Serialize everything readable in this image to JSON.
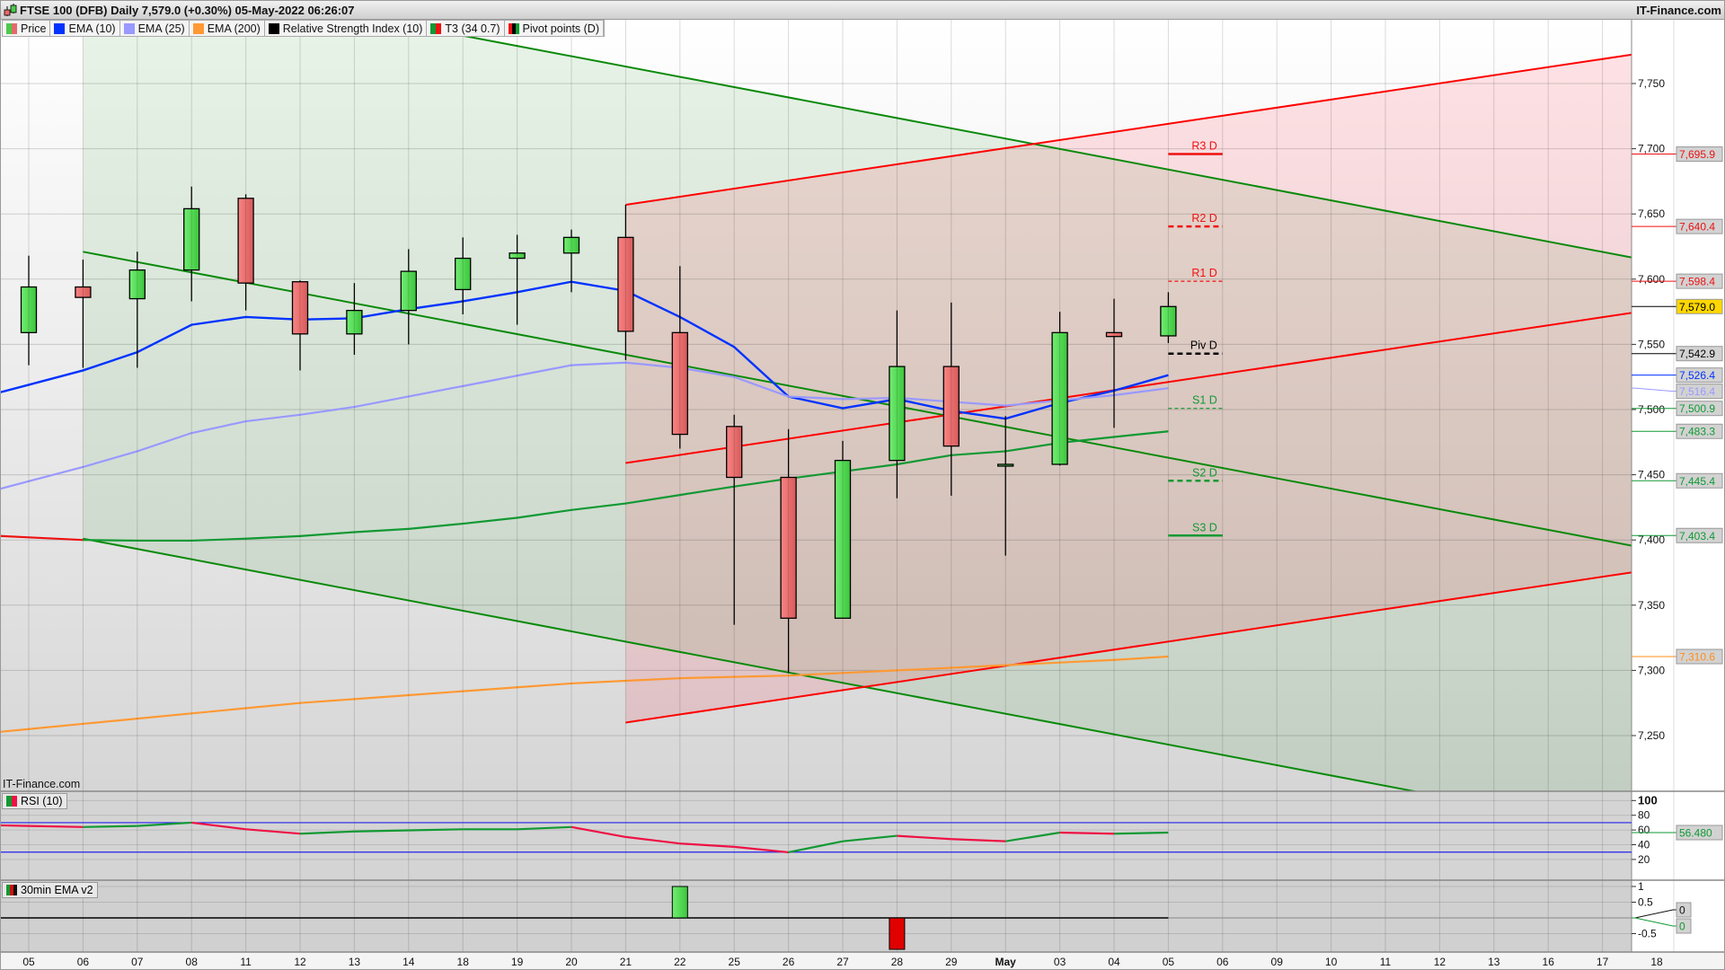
{
  "header": {
    "title": "FTSE 100 (DFB) Daily 7,579.0 (+0.30%) 05-May-2022 06:26:07",
    "brand": "IT-Finance.com",
    "logo_icon": "candlestick-icon"
  },
  "legend": [
    {
      "label": "Price",
      "colors": [
        "#4cc94c",
        "#e46a6a"
      ]
    },
    {
      "label": "EMA (10)",
      "colors": [
        "#0033ff"
      ]
    },
    {
      "label": "EMA (25)",
      "colors": [
        "#9999ff"
      ]
    },
    {
      "label": "EMA (200)",
      "colors": [
        "#ff9933"
      ]
    },
    {
      "label": "Relative Strength Index (10)",
      "colors": [
        "#000000"
      ]
    },
    {
      "label": "T3 (34 0.7)",
      "colors": [
        "#119933",
        "#ee1111"
      ]
    },
    {
      "label": "Pivot points (D)",
      "colors": [
        "#ee1111",
        "#000000",
        "#119933"
      ]
    }
  ],
  "watermark": "IT-Finance.com",
  "panels": {
    "rsi_label": "RSI (10)",
    "ema30_label": "30min EMA v2"
  },
  "colors": {
    "up": "#4cd44c",
    "down": "#e86a6a",
    "ema10": "#0033ff",
    "ema25": "#9999ff",
    "ema200": "#ff9933",
    "t3_up": "#119933",
    "t3_down": "#ee1111",
    "channel_green": "#0a8a0a",
    "channel_red": "#ff0000",
    "rsi_band": "#2222ee",
    "last_price_bg": "#ffd700"
  },
  "chart_data": {
    "type": "candlestick",
    "ylim": [
      7207,
      7799
    ],
    "price_ticks": [
      "7,750",
      "7,700",
      "7,650",
      "7,600",
      "7,550",
      "7,500",
      "7,450",
      "7,400",
      "7,350",
      "7,300",
      "7,250"
    ],
    "price_tick_values": [
      7750,
      7700,
      7650,
      7600,
      7550,
      7500,
      7450,
      7400,
      7350,
      7300,
      7250
    ],
    "date_labels": [
      "05",
      "06",
      "07",
      "08",
      "11",
      "12",
      "13",
      "14",
      "18",
      "19",
      "20",
      "21",
      "22",
      "25",
      "26",
      "27",
      "28",
      "29",
      "May",
      "03",
      "04",
      "05",
      "06",
      "09",
      "10",
      "11",
      "12",
      "13",
      "16",
      "17",
      "18"
    ],
    "grid": true,
    "candles": [
      {
        "date": "05",
        "o": 7559,
        "h": 7618,
        "l": 7534,
        "c": 7594
      },
      {
        "date": "06",
        "o": 7594,
        "h": 7615,
        "l": 7532,
        "c": 7586
      },
      {
        "date": "07",
        "o": 7585,
        "h": 7621,
        "l": 7532,
        "c": 7607
      },
      {
        "date": "08",
        "o": 7607,
        "h": 7671,
        "l": 7583,
        "c": 7654
      },
      {
        "date": "11",
        "o": 7662,
        "h": 7665,
        "l": 7576,
        "c": 7597
      },
      {
        "date": "12",
        "o": 7598,
        "h": 7599,
        "l": 7530,
        "c": 7558
      },
      {
        "date": "13",
        "o": 7558,
        "h": 7597,
        "l": 7542,
        "c": 7576
      },
      {
        "date": "14",
        "o": 7576,
        "h": 7623,
        "l": 7550,
        "c": 7606
      },
      {
        "date": "18",
        "o": 7592,
        "h": 7632,
        "l": 7573,
        "c": 7616
      },
      {
        "date": "19",
        "o": 7616,
        "h": 7634,
        "l": 7565,
        "c": 7620
      },
      {
        "date": "20",
        "o": 7620,
        "h": 7638,
        "l": 7590,
        "c": 7632
      },
      {
        "date": "21",
        "o": 7632,
        "h": 7657,
        "l": 7538,
        "c": 7560
      },
      {
        "date": "22",
        "o": 7559,
        "h": 7610,
        "l": 7470,
        "c": 7481
      },
      {
        "date": "25",
        "o": 7487,
        "h": 7496,
        "l": 7335,
        "c": 7448
      },
      {
        "date": "26",
        "o": 7448,
        "h": 7485,
        "l": 7298,
        "c": 7340
      },
      {
        "date": "27",
        "o": 7340,
        "h": 7476,
        "l": 7340,
        "c": 7461
      },
      {
        "date": "28",
        "o": 7461,
        "h": 7576,
        "l": 7432,
        "c": 7533
      },
      {
        "date": "29",
        "o": 7533,
        "h": 7582,
        "l": 7434,
        "c": 7472
      },
      {
        "date": "May",
        "o": 7457,
        "h": 7495,
        "l": 7388,
        "c": 7458
      },
      {
        "date": "03",
        "o": 7458,
        "h": 7575,
        "l": 7457,
        "c": 7559
      },
      {
        "date": "04",
        "o": 7559,
        "h": 7585,
        "l": 7486,
        "c": 7556
      },
      {
        "date": "05",
        "o": 7556.5,
        "h": 7590,
        "l": 7551,
        "c": 7579
      }
    ],
    "series": [
      {
        "name": "EMA (10)",
        "key": "ema10",
        "values": [
          7519,
          7530,
          7544,
          7565,
          7571,
          7569,
          7570,
          7577,
          7583,
          7590,
          7598,
          7591,
          7571,
          7548,
          7510,
          7501,
          7508,
          7499,
          7493,
          7505,
          7514.5,
          7526.4
        ]
      },
      {
        "name": "EMA (25)",
        "key": "ema25",
        "values": [
          7445,
          7456,
          7468,
          7482,
          7491,
          7496,
          7502,
          7510,
          7518,
          7526,
          7534,
          7536,
          7532,
          7525,
          7510,
          7508,
          7509,
          7506,
          7503,
          7507,
          7511,
          7516.4
        ]
      },
      {
        "name": "EMA (200)",
        "key": "ema200",
        "values": [
          7255,
          7259,
          7263,
          7267,
          7271,
          7275,
          7278,
          7281,
          7284,
          7287,
          7290,
          7292,
          7294,
          7295,
          7296,
          7298,
          7300,
          7302,
          7304,
          7306,
          7308,
          7310.6
        ]
      },
      {
        "name": "T3 (34 0.7)",
        "key": "t3",
        "values": [
          7402,
          7400,
          7399.5,
          7399.5,
          7401,
          7403,
          7406,
          7408.5,
          7412.5,
          7417,
          7423,
          7428,
          7434.5,
          7441,
          7447,
          7452.5,
          7458,
          7465,
          7468,
          7474.5,
          7479,
          7483.3
        ],
        "trend": [
          "down",
          "down",
          "down",
          "up",
          "up",
          "up",
          "up",
          "up",
          "up",
          "up",
          "up",
          "up",
          "up",
          "up",
          "up",
          "up",
          "up",
          "up",
          "up",
          "up",
          "up",
          "up"
        ]
      }
    ],
    "trend_channels": [
      {
        "color": "green",
        "from_date_index": 1,
        "lines": [
          {
            "start": 7842,
            "end": 7613
          },
          {
            "start": 7621,
            "end": 7392
          },
          {
            "start": 7401,
            "end": 7172
          }
        ],
        "end_date_index": 30
      },
      {
        "color": "red",
        "from_date_index": 11,
        "lines": [
          {
            "start": 7657,
            "end": 7775
          },
          {
            "start": 7459,
            "end": 7577
          },
          {
            "start": 7260,
            "end": 7378
          }
        ],
        "end_date_index": 30
      }
    ],
    "pivots": [
      {
        "label": "R3 D",
        "value": 7695.9,
        "value_label": "7,695.9",
        "color": "#ee1111",
        "style": "solid"
      },
      {
        "label": "R2 D",
        "value": 7640.4,
        "value_label": "7,640.4",
        "color": "#ee1111",
        "style": "dash-thick"
      },
      {
        "label": "R1 D",
        "value": 7598.4,
        "value_label": "7,598.4",
        "color": "#ee1111",
        "style": "dash-thin"
      },
      {
        "label": "Piv D",
        "value": 7542.9,
        "value_label": "7,542.9",
        "color": "#000000",
        "style": "dash-thick"
      },
      {
        "label": "S1 D",
        "value": 7500.9,
        "value_label": "7,500.9",
        "color": "#119933",
        "style": "dash-thin"
      },
      {
        "label": "S2 D",
        "value": 7445.4,
        "value_label": "7,445.4",
        "color": "#119933",
        "style": "dash-thick"
      },
      {
        "label": "S3 D",
        "value": 7403.4,
        "value_label": "7,403.4",
        "color": "#119933",
        "style": "solid"
      }
    ],
    "value_labels": [
      {
        "text": "7,579.0",
        "value": 7579.0,
        "color": "#000000",
        "bg": "#ffd700"
      },
      {
        "text": "7,526.4",
        "value": 7526.4,
        "color": "#0033ff"
      },
      {
        "text": "7,516.4",
        "value": 7516.4,
        "color": "#9999ff"
      },
      {
        "text": "7,483.3",
        "value": 7483.3,
        "color": "#119933"
      },
      {
        "text": "7,310.6",
        "value": 7310.6,
        "color": "#ff8c1a"
      }
    ],
    "rsi": {
      "values": [
        65.5,
        64.0,
        65.5,
        70.0,
        61.0,
        55.0,
        58.0,
        59.5,
        61.0,
        61.0,
        64.0,
        50.5,
        41.6,
        37.1,
        29.7,
        44.7,
        52.1,
        47.6,
        44.7,
        56.5,
        55.0,
        56.48
      ],
      "last_label": "56.480",
      "levels": [
        70,
        30
      ],
      "ticks": [
        "100",
        "80",
        "60",
        "40",
        "20"
      ],
      "tick_values": [
        100,
        80,
        60,
        40,
        20
      ]
    },
    "ema30": {
      "values": [
        0,
        0,
        0,
        0,
        0,
        0,
        0,
        0,
        0,
        0,
        0,
        0,
        1,
        0,
        0,
        0,
        -1,
        0,
        0,
        0,
        0,
        0
      ],
      "ticks": [
        "1",
        "0.5",
        "-0.5"
      ],
      "tick_values": [
        1,
        0.5,
        -0.5
      ],
      "last_labels": [
        "0",
        "0"
      ]
    }
  }
}
